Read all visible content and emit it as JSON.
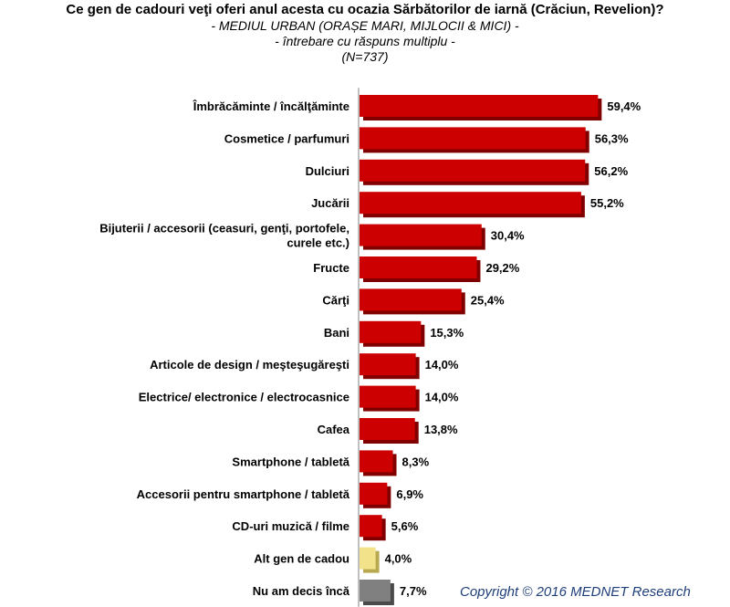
{
  "chart_data": {
    "type": "bar",
    "orientation": "horizontal",
    "title": "Ce gen de cadouri veţi oferi anul acesta cu ocazia Sărbătorilor de iarnă (Crăciun, Revelion)?",
    "subtitle_lines": [
      "- MEDIUL URBAN (ORAȘE MARI, MIJLOCII & MICI) -",
      "- întrebare cu răspuns multiplu -",
      "(N=737)"
    ],
    "categories": [
      [
        "Îmbrăcăminte / încălţăminte"
      ],
      [
        "Cosmetice / parfumuri"
      ],
      [
        "Dulciuri"
      ],
      [
        "Jucării"
      ],
      [
        "Bijuterii / accesorii (ceasuri, genţi, portofele,",
        "curele etc.)"
      ],
      [
        "Fructe"
      ],
      [
        "Cărţi"
      ],
      [
        "Bani"
      ],
      [
        "Articole de design / meşteşugăreşti"
      ],
      [
        "Electrice/ electronice / electrocasnice"
      ],
      [
        "Cafea"
      ],
      [
        "Smartphone / tabletă"
      ],
      [
        "Accesorii pentru smartphone / tabletă"
      ],
      [
        "CD-uri muzică / filme"
      ],
      [
        "Alt gen de cadou"
      ],
      [
        "Nu am decis încă"
      ]
    ],
    "values": [
      59.4,
      56.3,
      56.2,
      55.2,
      30.4,
      29.2,
      25.4,
      15.3,
      14.0,
      14.0,
      13.8,
      8.3,
      6.9,
      5.6,
      4.0,
      7.7
    ],
    "value_labels": [
      "59,4%",
      "56,3%",
      "56,2%",
      "55,2%",
      "30,4%",
      "29,2%",
      "25,4%",
      "15,3%",
      "14,0%",
      "14,0%",
      "13,8%",
      "8,3%",
      "6,9%",
      "5,6%",
      "4,0%",
      "7,7%"
    ],
    "bar_colors": [
      "#cc0000",
      "#cc0000",
      "#cc0000",
      "#cc0000",
      "#cc0000",
      "#cc0000",
      "#cc0000",
      "#cc0000",
      "#cc0000",
      "#cc0000",
      "#cc0000",
      "#cc0000",
      "#cc0000",
      "#cc0000",
      "#f2e38a",
      "#808080"
    ],
    "bar_shadow_colors": [
      "#800000",
      "#800000",
      "#800000",
      "#800000",
      "#800000",
      "#800000",
      "#800000",
      "#800000",
      "#800000",
      "#800000",
      "#800000",
      "#800000",
      "#800000",
      "#800000",
      "#b8a850",
      "#4a4a4a"
    ],
    "xlim": [
      0,
      100
    ],
    "grid": false,
    "legend": false
  },
  "footer": {
    "copyright": "Copyright ©  2016 MEDNET Research"
  }
}
